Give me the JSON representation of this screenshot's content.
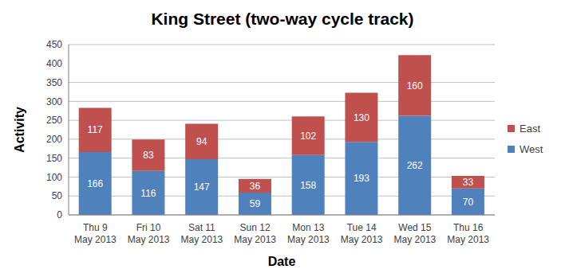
{
  "chart_data": {
    "type": "bar",
    "title": "King Street (two-way cycle track)",
    "x_label": "Date",
    "y_label": "Activity",
    "categories": [
      "Thu 9 May 2013",
      "Fri 10 May 2013",
      "Sat 11 May 2013",
      "Sun 12 May 2013",
      "Mon 13 May 2013",
      "Tue 14 May 2013",
      "Wed 15 May 2013",
      "Thu 16 May 2013"
    ],
    "series": [
      {
        "name": "West",
        "color": "#4f81bd",
        "values": [
          166,
          116,
          147,
          59,
          158,
          193,
          262,
          70
        ]
      },
      {
        "name": "East",
        "color": "#c0504d",
        "values": [
          117,
          83,
          94,
          36,
          102,
          130,
          160,
          33
        ]
      }
    ],
    "ylim": [
      0,
      450
    ],
    "yticks": [
      0,
      50,
      100,
      150,
      200,
      250,
      300,
      350,
      400,
      450
    ],
    "grid": true,
    "stacked": true,
    "data_labels": true,
    "legend": "right"
  }
}
